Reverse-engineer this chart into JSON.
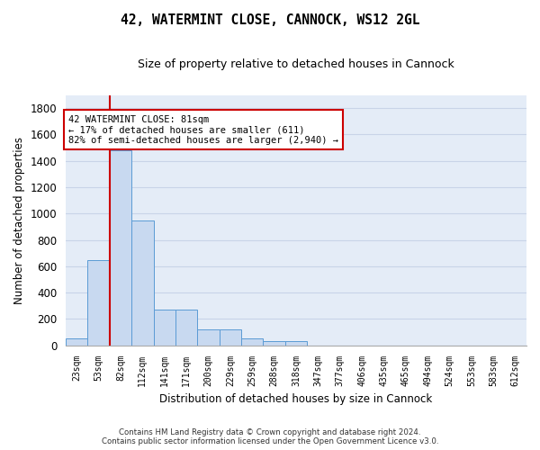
{
  "title_line1": "42, WATERMINT CLOSE, CANNOCK, WS12 2GL",
  "title_line2": "Size of property relative to detached houses in Cannock",
  "xlabel": "Distribution of detached houses by size in Cannock",
  "ylabel": "Number of detached properties",
  "categories": [
    "23sqm",
    "53sqm",
    "82sqm",
    "112sqm",
    "141sqm",
    "171sqm",
    "200sqm",
    "229sqm",
    "259sqm",
    "288sqm",
    "318sqm",
    "347sqm",
    "377sqm",
    "406sqm",
    "435sqm",
    "465sqm",
    "494sqm",
    "524sqm",
    "553sqm",
    "583sqm",
    "612sqm"
  ],
  "values": [
    50,
    650,
    1480,
    950,
    270,
    270,
    120,
    120,
    50,
    30,
    30,
    0,
    0,
    0,
    0,
    0,
    0,
    0,
    0,
    0,
    0
  ],
  "bar_color": "#c8d9f0",
  "bar_edge_color": "#5b9bd5",
  "grid_color": "#c8d4e8",
  "background_color": "#e4ecf7",
  "red_line_x": 1.5,
  "annotation_box_text": "42 WATERMINT CLOSE: 81sqm\n← 17% of detached houses are smaller (611)\n82% of semi-detached houses are larger (2,940) →",
  "annotation_box_color": "#cc0000",
  "footer_line1": "Contains HM Land Registry data © Crown copyright and database right 2024.",
  "footer_line2": "Contains public sector information licensed under the Open Government Licence v3.0.",
  "ylim": [
    0,
    1900
  ],
  "yticks": [
    0,
    200,
    400,
    600,
    800,
    1000,
    1200,
    1400,
    1600,
    1800
  ],
  "fig_width": 6.0,
  "fig_height": 5.0,
  "dpi": 100
}
